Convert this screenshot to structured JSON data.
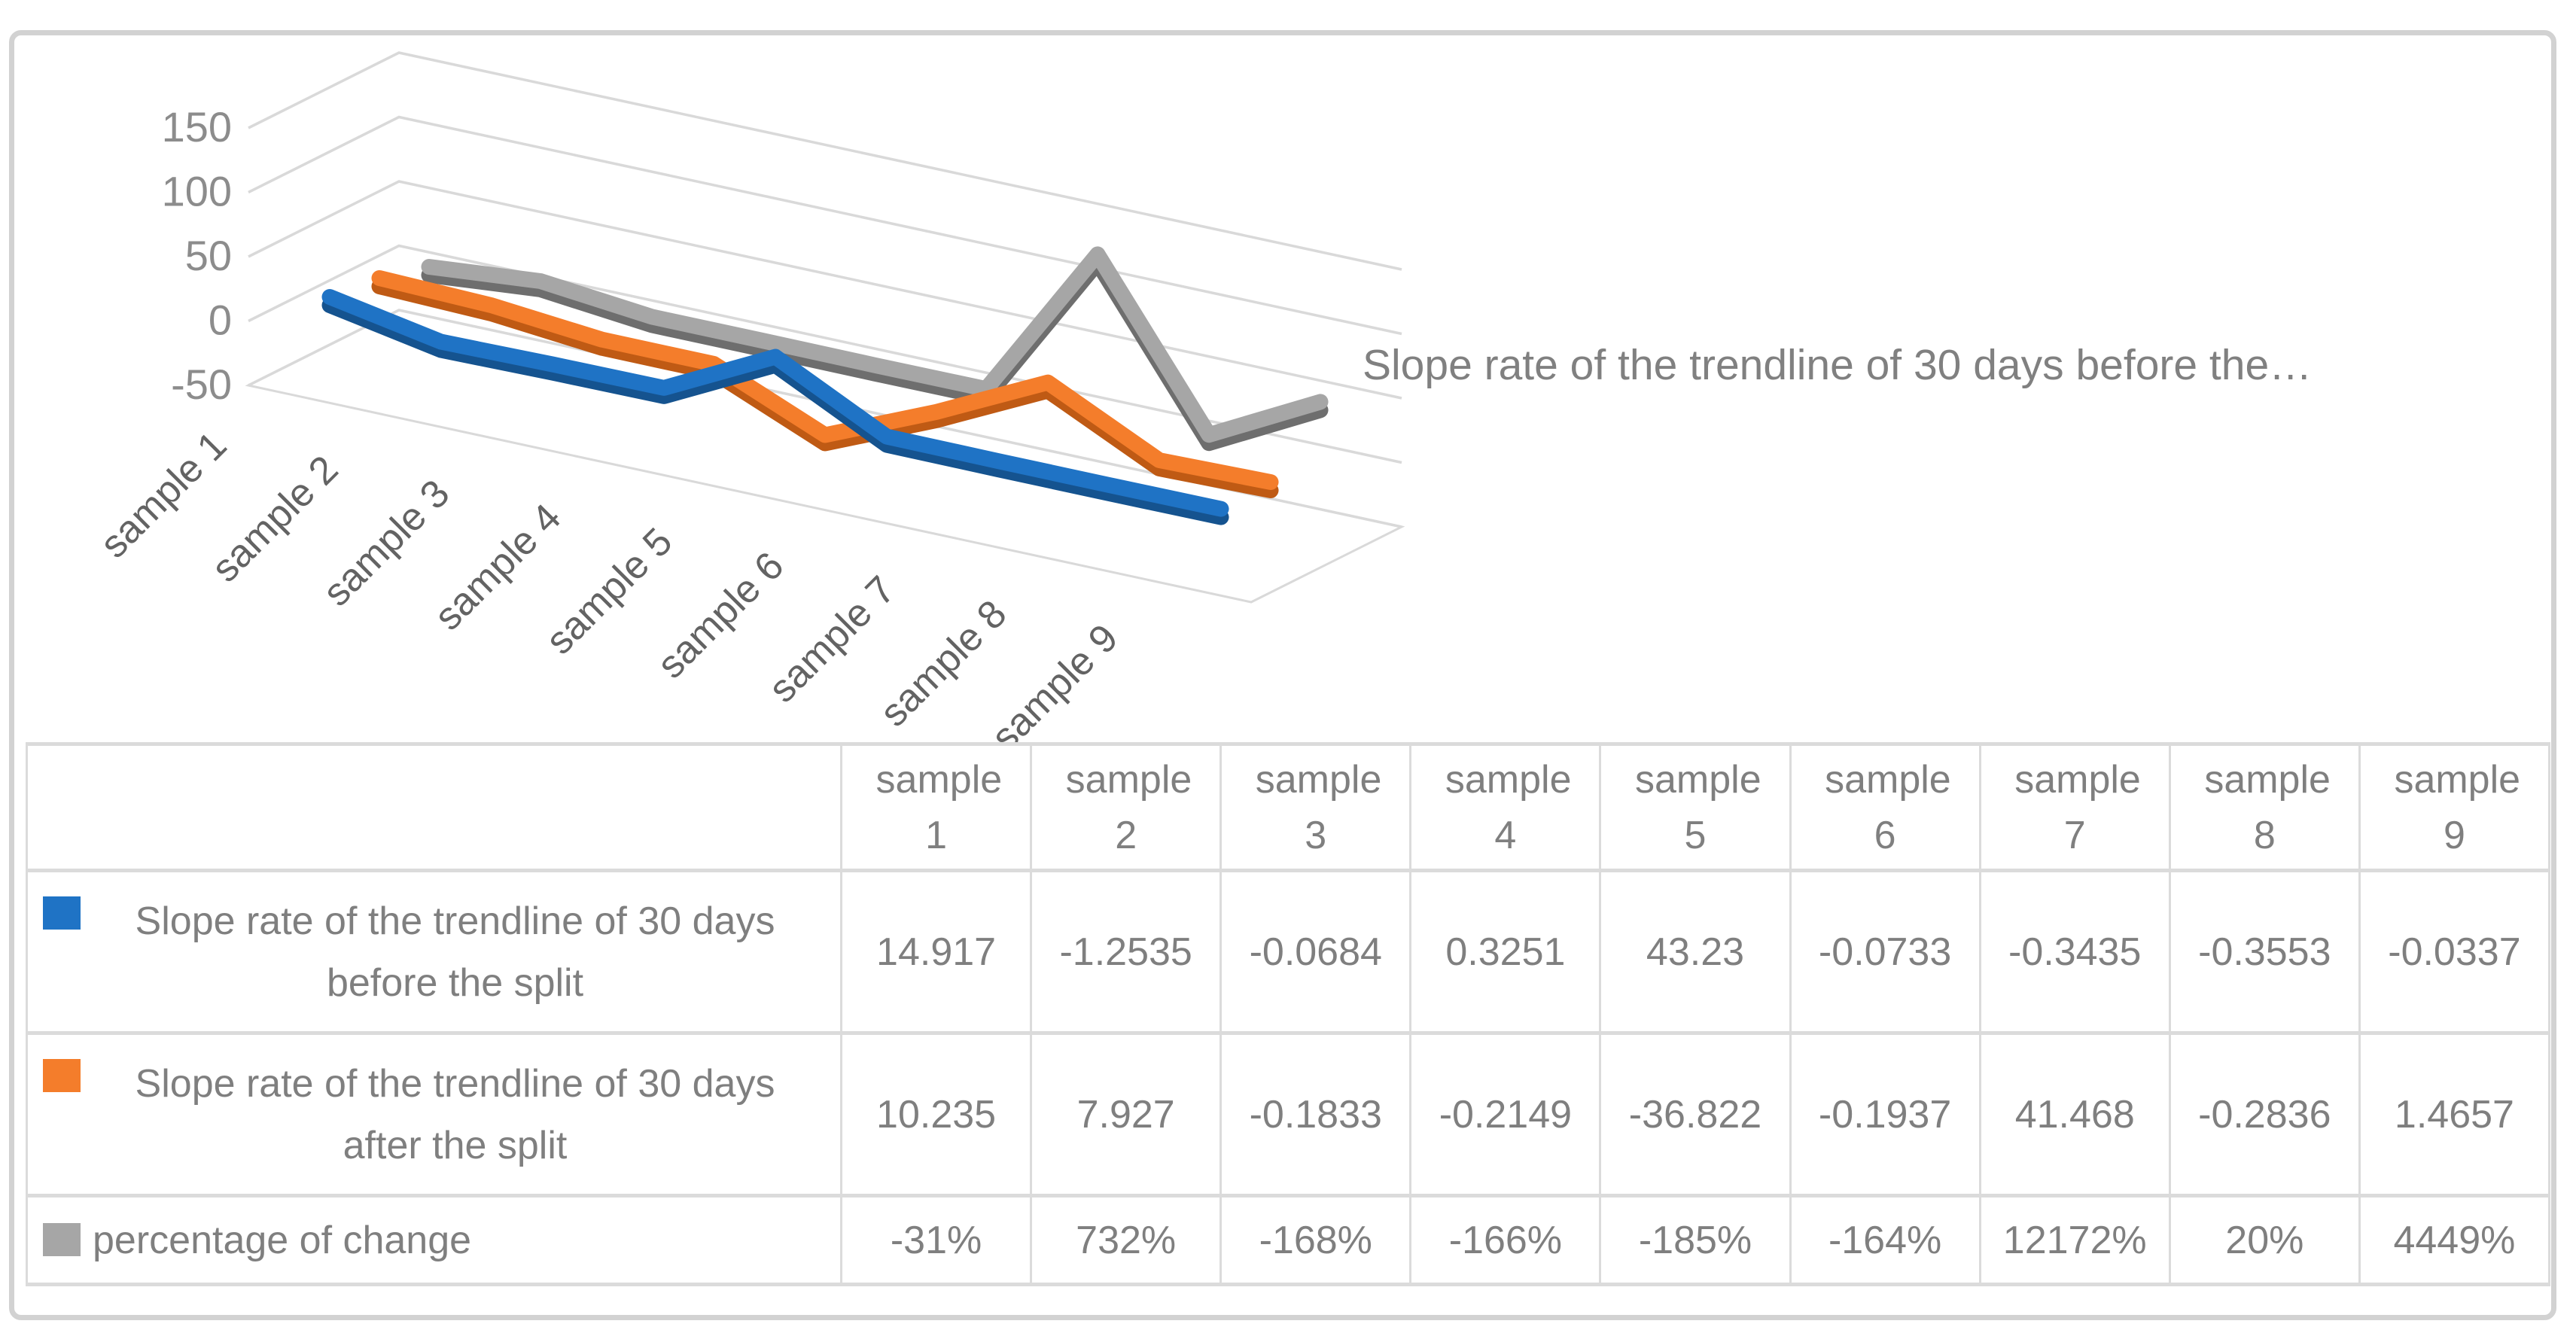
{
  "chart_data": {
    "type": "line",
    "style": "3d-line",
    "title": "Slope rate of the trendline of 30 days before the…",
    "categories": [
      "sample 1",
      "sample 2",
      "sample 3",
      "sample 4",
      "sample 5",
      "sample 6",
      "sample 7",
      "sample 8",
      "sample 9"
    ],
    "value_axis_ticks": [
      150,
      100,
      50,
      0,
      -50
    ],
    "value_axis_range": [
      -50,
      150
    ],
    "grid": true,
    "legend_position": "data-table-left",
    "series": [
      {
        "name": "Slope rate of the trendline of 30 days before the split",
        "color": "#1F73C5",
        "shade": "#15538F",
        "values": [
          14.917,
          -1.2535,
          -0.0684,
          0.3251,
          43.23,
          -0.0733,
          -0.3435,
          -0.3553,
          -0.0337
        ]
      },
      {
        "name": "Slope rate of the trendline of 30 days after the split",
        "color": "#F47D2B",
        "shade": "#BF5A14",
        "values": [
          10.235,
          7.927,
          -0.1833,
          -0.2149,
          -36.822,
          -0.1937,
          41.468,
          -0.2836,
          1.4657
        ]
      },
      {
        "name": "percentage of change",
        "color": "#A6A6A6",
        "shade": "#6E6E6E",
        "values": [
          -0.31,
          7.32,
          -1.68,
          -1.66,
          -1.85,
          -1.64,
          121.72,
          0.2,
          44.49
        ],
        "display_values": [
          "-31%",
          "732%",
          "-168%",
          "-166%",
          "-185%",
          "-164%",
          "12172%",
          "20%",
          "4449%"
        ]
      }
    ]
  },
  "table": {
    "column_headers": [
      "sample 1",
      "sample 2",
      "sample 3",
      "sample 4",
      "sample 5",
      "sample 6",
      "sample 7",
      "sample 8",
      "sample 9"
    ],
    "rows": [
      {
        "label": "Slope rate of the trendline of 30 days before the split",
        "key_color": "#1F73C5",
        "values": [
          "14.917",
          "-1.2535",
          "-0.0684",
          "0.3251",
          "43.23",
          "-0.0733",
          "-0.3435",
          "-0.3553",
          "-0.0337"
        ]
      },
      {
        "label": "Slope rate of the trendline of 30 days after the split",
        "key_color": "#F47D2B",
        "values": [
          "10.235",
          "7.927",
          "-0.1833",
          "-0.2149",
          "-36.822",
          "-0.1937",
          "41.468",
          "-0.2836",
          "1.4657"
        ]
      },
      {
        "label": "percentage of change",
        "key_color": "#A6A6A6",
        "values": [
          "-31%",
          "732%",
          "-168%",
          "-166%",
          "-185%",
          "-164%",
          "12172%",
          "20%",
          "4449%"
        ]
      }
    ]
  },
  "colors": {
    "grid": "#D9D9D9",
    "frame_border": "#D2D2D2",
    "axis_text": "#8C8C8C",
    "category_text": "#636363",
    "table_text": "#7F7F7F",
    "title_text": "#808080"
  }
}
